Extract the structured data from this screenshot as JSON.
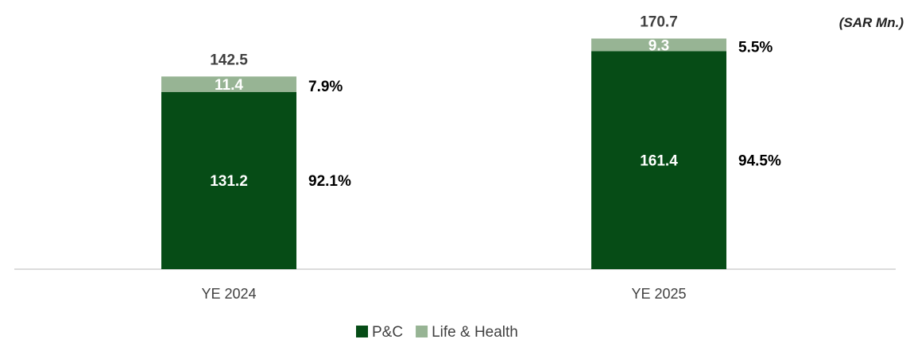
{
  "chart_data": {
    "type": "bar",
    "stacked": true,
    "unit_note": "(SAR Mn.)",
    "categories": [
      "YE 2024",
      "YE 2025"
    ],
    "totals": [
      "142.5",
      "170.7"
    ],
    "series": [
      {
        "name": "P&C",
        "values": [
          131.2,
          161.4
        ],
        "value_labels": [
          "131.2",
          "161.4"
        ],
        "shares": [
          "92.1%",
          "94.5%"
        ],
        "color": "#064c16"
      },
      {
        "name": "Life & Health",
        "values": [
          11.4,
          9.3
        ],
        "value_labels": [
          "11.4",
          "9.3"
        ],
        "shares": [
          "7.9%",
          "5.5%"
        ],
        "color": "#97b494"
      }
    ],
    "ylim": [
      0,
      181
    ],
    "grid": false,
    "legend": "bottom-center"
  }
}
